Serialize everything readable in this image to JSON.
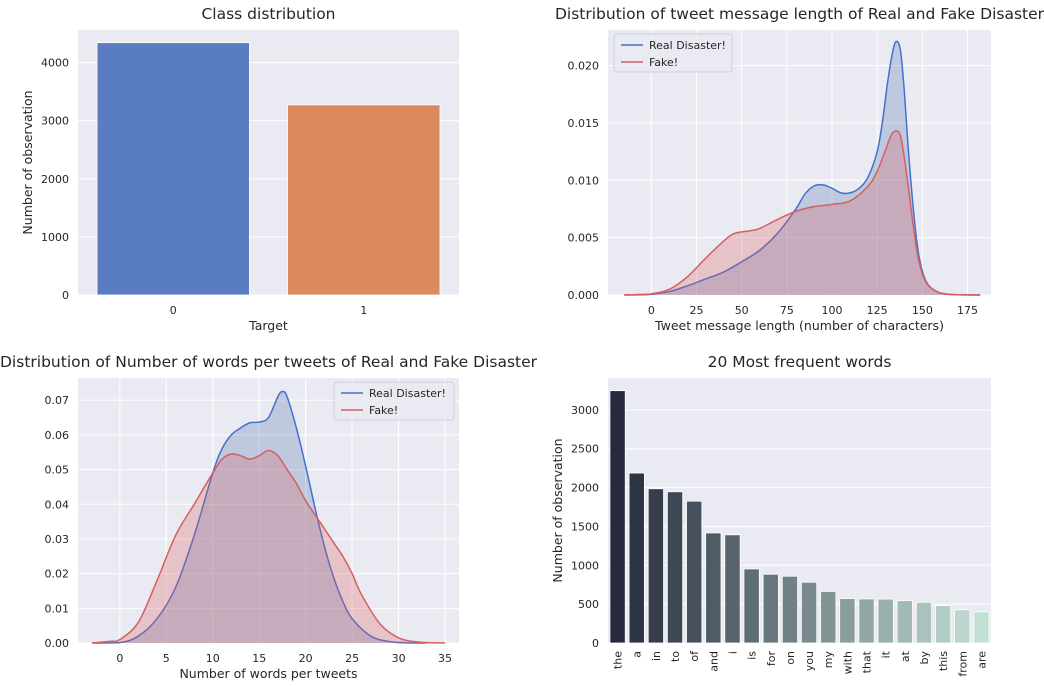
{
  "colors": {
    "panel_bg": "#EAEAF2",
    "grid": "#FFFFFF",
    "real": "#4C72B0",
    "real_line": "#4470D0",
    "fake": "#D65F5F",
    "bar0": "#5A7DC2",
    "bar1": "#DA8A5E"
  },
  "chart_data": [
    {
      "type": "bar",
      "title": "Class distribution",
      "xlabel": "Target",
      "ylabel": "Number of observation",
      "categories": [
        "0",
        "1"
      ],
      "values": [
        4342,
        3271
      ],
      "ylim": [
        0,
        4560
      ],
      "yticks": [
        0,
        1000,
        2000,
        3000,
        4000
      ],
      "grid": true
    },
    {
      "type": "area",
      "title": "Distribution of tweet message length of Real and Fake Disaster",
      "xlabel": "Tweet message length (number of characters)",
      "ylabel": "",
      "xlim": [
        -24,
        188
      ],
      "ylim": [
        0,
        0.0231
      ],
      "xticks": [
        0,
        25,
        50,
        75,
        100,
        125,
        150,
        175
      ],
      "yticks": [
        0.0,
        0.005,
        0.01,
        0.015,
        0.02
      ],
      "ytick_decimals": 3,
      "legend": "top-left",
      "series": [
        {
          "name": "Real Disaster!",
          "x": [
            -15,
            -5,
            0,
            10,
            20,
            30,
            40,
            50,
            60,
            70,
            80,
            85,
            90,
            95,
            100,
            105,
            110,
            115,
            120,
            125,
            128,
            131,
            134,
            136,
            138,
            140,
            142,
            145,
            148,
            152,
            158,
            165,
            175,
            182
          ],
          "y": [
            0,
            2e-05,
            6e-05,
            0.0003,
            0.0008,
            0.0014,
            0.002,
            0.0029,
            0.0039,
            0.0054,
            0.0075,
            0.0088,
            0.0095,
            0.0096,
            0.0093,
            0.0089,
            0.0089,
            0.0093,
            0.0103,
            0.0125,
            0.0152,
            0.0188,
            0.0215,
            0.0221,
            0.0212,
            0.0178,
            0.0132,
            0.0075,
            0.0035,
            0.0012,
            0.0003,
            5e-05,
            1e-05,
            0
          ]
        },
        {
          "name": "Fake!",
          "x": [
            -15,
            -5,
            0,
            10,
            20,
            30,
            40,
            45,
            50,
            55,
            60,
            70,
            80,
            90,
            100,
            110,
            120,
            125,
            130,
            133,
            136,
            138,
            140,
            142,
            145,
            148,
            152,
            158,
            165,
            175,
            182
          ],
          "y": [
            0,
            5e-05,
            0.0001,
            0.0005,
            0.0016,
            0.0032,
            0.0047,
            0.0053,
            0.0055,
            0.0056,
            0.0058,
            0.0066,
            0.0073,
            0.0077,
            0.0079,
            0.0082,
            0.0095,
            0.0108,
            0.0128,
            0.014,
            0.0143,
            0.0138,
            0.012,
            0.0097,
            0.006,
            0.003,
            0.0011,
            0.0003,
            5e-05,
            1e-05,
            0
          ]
        }
      ]
    },
    {
      "type": "area",
      "title": "Distribution of Number of words per tweets of Real and Fake Disaster",
      "xlabel": "Number of words per tweets",
      "ylabel": "",
      "xlim": [
        -4.5,
        36.5
      ],
      "ylim": [
        0,
        0.0764
      ],
      "xticks": [
        0,
        5,
        10,
        15,
        20,
        25,
        30,
        35
      ],
      "yticks": [
        0.0,
        0.01,
        0.02,
        0.03,
        0.04,
        0.05,
        0.06,
        0.07
      ],
      "ytick_decimals": 2,
      "legend": "top-right",
      "series": [
        {
          "name": "Real Disaster!",
          "x": [
            -3,
            0,
            2,
            4,
            6,
            8,
            10,
            11,
            12,
            13,
            14,
            15,
            16,
            17,
            17.5,
            18,
            19,
            20,
            21,
            22,
            23,
            24,
            25,
            27,
            29,
            31,
            33
          ],
          "y": [
            0,
            0.0001,
            0.002,
            0.007,
            0.016,
            0.031,
            0.049,
            0.056,
            0.06,
            0.062,
            0.0635,
            0.0637,
            0.065,
            0.071,
            0.0725,
            0.071,
            0.062,
            0.051,
            0.039,
            0.028,
            0.019,
            0.012,
            0.007,
            0.002,
            0.0004,
            5e-05,
            0
          ]
        },
        {
          "name": "Fake!",
          "x": [
            -3,
            -1,
            0,
            2,
            4,
            6,
            8,
            10,
            11,
            12,
            13,
            14,
            15,
            16,
            17,
            18,
            19,
            20,
            21,
            22,
            23,
            24,
            25,
            26,
            28,
            30,
            32,
            35
          ],
          "y": [
            0,
            0.0005,
            0.001,
            0.006,
            0.018,
            0.031,
            0.04,
            0.049,
            0.053,
            0.0545,
            0.054,
            0.053,
            0.054,
            0.0555,
            0.054,
            0.05,
            0.046,
            0.041,
            0.037,
            0.033,
            0.029,
            0.025,
            0.02,
            0.014,
            0.0055,
            0.0015,
            0.0003,
            0
          ]
        }
      ]
    },
    {
      "type": "bar",
      "title": "20 Most frequent words",
      "xlabel": "",
      "ylabel": "Number of observation",
      "categories": [
        "the",
        "a",
        "in",
        "to",
        "of",
        "and",
        "i",
        "is",
        "for",
        "on",
        "you",
        "my",
        "with",
        "that",
        "it",
        "at",
        "by",
        "this",
        "from",
        "are"
      ],
      "values": [
        3247,
        2187,
        1985,
        1946,
        1825,
        1416,
        1392,
        953,
        885,
        859,
        782,
        664,
        572,
        567,
        565,
        545,
        524,
        481,
        428,
        401
      ],
      "ylim": [
        0,
        3410
      ],
      "yticks": [
        0,
        500,
        1000,
        1500,
        2000,
        2500,
        3000
      ],
      "rotate_xticks": true,
      "grid": true
    }
  ]
}
